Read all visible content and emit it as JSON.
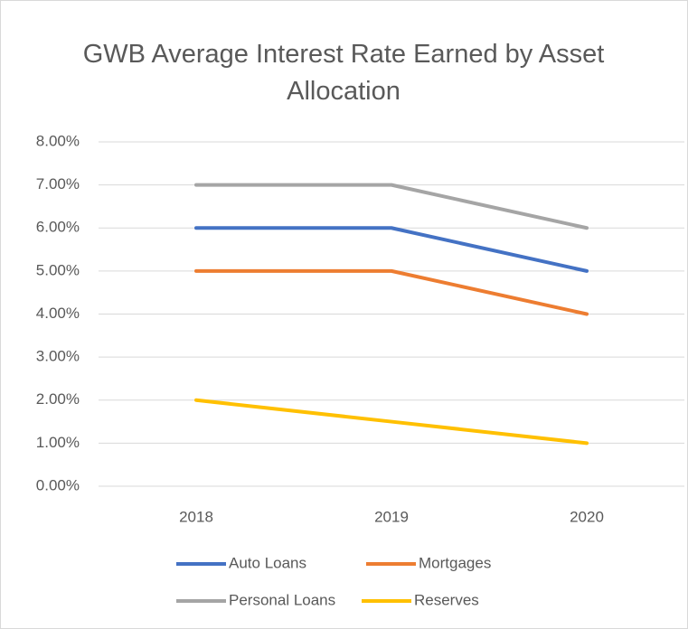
{
  "chart_data": {
    "type": "line",
    "title": "GWB Average Interest Rate Earned by Asset Allocation",
    "categories": [
      "2018",
      "2019",
      "2020"
    ],
    "series": [
      {
        "name": "Auto Loans",
        "color": "#4472c4",
        "values": [
          6,
          6,
          5
        ]
      },
      {
        "name": "Mortgages",
        "color": "#ed7d31",
        "values": [
          5,
          5,
          4
        ]
      },
      {
        "name": "Personal Loans",
        "color": "#a5a5a5",
        "values": [
          7,
          7,
          6
        ]
      },
      {
        "name": "Reserves",
        "color": "#ffc000",
        "values": [
          2,
          1.5,
          1
        ]
      }
    ],
    "ylim": [
      0,
      8
    ],
    "yticks": [
      {
        "value": 0,
        "label": "0.00%"
      },
      {
        "value": 1,
        "label": "1.00%"
      },
      {
        "value": 2,
        "label": "2.00%"
      },
      {
        "value": 3,
        "label": "3.00%"
      },
      {
        "value": 4,
        "label": "4.00%"
      },
      {
        "value": 5,
        "label": "5.00%"
      },
      {
        "value": 6,
        "label": "6.00%"
      },
      {
        "value": 7,
        "label": "7.00%"
      },
      {
        "value": 8,
        "label": "8.00%"
      }
    ],
    "grid": true,
    "legend": "bottom"
  }
}
